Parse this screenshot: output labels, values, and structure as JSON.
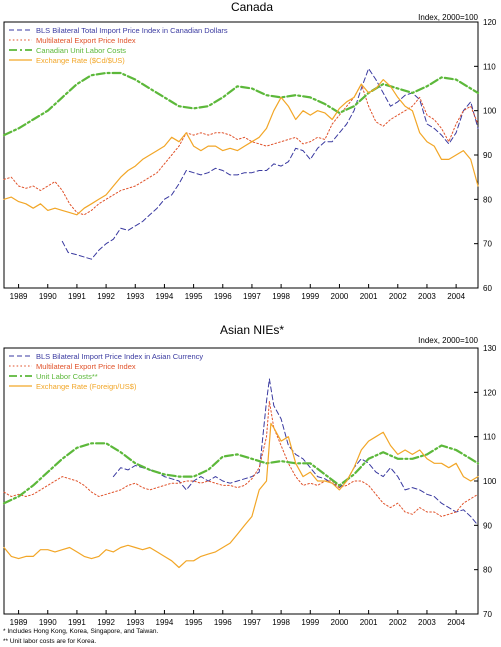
{
  "chart_data": [
    {
      "type": "line",
      "title": "Canada",
      "units_label": "Index, 2000=100",
      "ylim": [
        60,
        120
      ],
      "yticks": [
        60,
        70,
        80,
        90,
        100,
        110,
        120
      ],
      "xlim": [
        1988.5,
        2004.75
      ],
      "xtick_labels": [
        "1989",
        "1990",
        "1991",
        "1992",
        "1993",
        "1994",
        "1995",
        "1996",
        "1997",
        "1998",
        "1999",
        "2000",
        "2001",
        "2002",
        "2003",
        "2004"
      ],
      "legend_position": "top-left",
      "series": [
        {
          "name": "BLS Bilateral Total Import Price Index in Canadian Dollars",
          "color": "#3a3aa0",
          "dash": "dashed",
          "width": 1,
          "x": [
            1990.5,
            1990.7,
            1991,
            1991.25,
            1991.5,
            1991.75,
            1992,
            1992.25,
            1992.5,
            1992.75,
            1993,
            1993.25,
            1993.5,
            1993.75,
            1994,
            1994.25,
            1994.5,
            1994.75,
            1995,
            1995.25,
            1995.5,
            1995.75,
            1996,
            1996.25,
            1996.5,
            1996.75,
            1997,
            1997.25,
            1997.5,
            1997.75,
            1998,
            1998.25,
            1998.5,
            1998.75,
            1999,
            1999.25,
            1999.5,
            1999.75,
            2000,
            2000.25,
            2000.5,
            2000.75,
            2001,
            2001.25,
            2001.5,
            2001.75,
            2002,
            2002.25,
            2002.5,
            2002.75,
            2003,
            2003.25,
            2003.5,
            2003.75,
            2004,
            2004.25,
            2004.5,
            2004.75
          ],
          "y": [
            70.5,
            68,
            67.5,
            67,
            66.5,
            68.5,
            70,
            71,
            73.5,
            73,
            74,
            75,
            76.5,
            78,
            80,
            81,
            83.5,
            86.5,
            86,
            85.5,
            86,
            87,
            86.5,
            85.5,
            85.5,
            86,
            86,
            86.5,
            86.5,
            88,
            87.5,
            88.5,
            91.5,
            91,
            89,
            91.5,
            93,
            93,
            95,
            97,
            100,
            105,
            109.5,
            107,
            104,
            101,
            102,
            103.5,
            104,
            102.5,
            97,
            96,
            94.5,
            92.5,
            95,
            100,
            102,
            96
          ]
        },
        {
          "name": "Multilateral Export Price Index",
          "color": "#e0522a",
          "dash": "dotted",
          "width": 1,
          "x": [
            1988.5,
            1988.75,
            1989,
            1989.25,
            1989.5,
            1989.75,
            1990,
            1990.25,
            1990.5,
            1990.75,
            1991,
            1991.25,
            1991.5,
            1991.75,
            1992,
            1992.25,
            1992.5,
            1992.75,
            1993,
            1993.25,
            1993.5,
            1993.75,
            1994,
            1994.25,
            1994.5,
            1994.75,
            1995,
            1995.25,
            1995.5,
            1995.75,
            1996,
            1996.25,
            1996.5,
            1996.75,
            1997,
            1997.25,
            1997.5,
            1997.75,
            1998,
            1998.25,
            1998.5,
            1998.75,
            1999,
            1999.25,
            1999.5,
            1999.75,
            2000,
            2000.25,
            2000.5,
            2000.75,
            2001,
            2001.25,
            2001.5,
            2001.75,
            2002,
            2002.25,
            2002.5,
            2002.75,
            2003,
            2003.25,
            2003.5,
            2003.75,
            2004,
            2004.25,
            2004.5,
            2004.75
          ],
          "y": [
            84.5,
            85,
            83,
            82.5,
            83,
            82,
            83,
            84,
            82,
            79,
            77,
            76.5,
            77.5,
            79,
            80,
            81,
            82,
            82.5,
            83,
            84,
            85,
            86,
            88,
            90,
            92,
            95,
            94.5,
            95,
            94.5,
            95,
            95,
            94.5,
            93.5,
            94,
            93,
            92.5,
            92,
            92.5,
            93,
            93.5,
            94,
            92.5,
            93,
            94,
            93.5,
            97,
            99,
            101,
            103,
            106,
            101,
            97.5,
            96.5,
            98,
            99,
            100,
            101,
            103,
            99,
            98,
            96,
            93,
            97,
            100,
            101,
            97
          ]
        },
        {
          "name": "Canadian Unit Labor Costs",
          "color": "#5cb83a",
          "dash": "dashdot",
          "width": 2.2,
          "x": [
            1988.5,
            1989,
            1989.5,
            1990,
            1990.5,
            1991,
            1991.5,
            1992,
            1992.5,
            1993,
            1993.5,
            1994,
            1994.5,
            1995,
            1995.5,
            1996,
            1996.5,
            1997,
            1997.5,
            1998,
            1998.5,
            1999,
            1999.5,
            2000,
            2000.5,
            2001,
            2001.5,
            2002,
            2002.5,
            2003,
            2003.5,
            2004,
            2004.5,
            2004.75
          ],
          "y": [
            94.5,
            96,
            98,
            100,
            103,
            106,
            108,
            108.5,
            108.5,
            107,
            105,
            103,
            101,
            100.5,
            101,
            103,
            105.5,
            105,
            103.5,
            103,
            103.5,
            103,
            101.5,
            99.5,
            101,
            104,
            106,
            105,
            104,
            105.5,
            107.5,
            107,
            105,
            104
          ]
        },
        {
          "name": "Exchange Rate ($Cd/$US)",
          "color": "#f2a627",
          "dash": "solid",
          "width": 1.2,
          "x": [
            1988.5,
            1988.75,
            1989,
            1989.25,
            1989.5,
            1989.75,
            1990,
            1990.25,
            1990.5,
            1990.75,
            1991,
            1991.25,
            1991.5,
            1991.75,
            1992,
            1992.25,
            1992.5,
            1992.75,
            1993,
            1993.25,
            1993.5,
            1993.75,
            1994,
            1994.25,
            1994.5,
            1994.75,
            1995,
            1995.25,
            1995.5,
            1995.75,
            1996,
            1996.25,
            1996.5,
            1996.75,
            1997,
            1997.25,
            1997.5,
            1997.75,
            1998,
            1998.25,
            1998.5,
            1998.75,
            1999,
            1999.25,
            1999.5,
            1999.75,
            2000,
            2000.25,
            2000.5,
            2000.75,
            2001,
            2001.25,
            2001.5,
            2001.75,
            2002,
            2002.25,
            2002.5,
            2002.75,
            2003,
            2003.25,
            2003.5,
            2003.75,
            2004,
            2004.25,
            2004.5,
            2004.75
          ],
          "y": [
            80,
            80.5,
            79.5,
            79,
            78,
            79,
            77.5,
            78,
            77.5,
            77,
            76.5,
            78,
            79,
            80,
            81,
            83,
            85,
            86.5,
            87.5,
            89,
            90,
            91,
            92,
            94,
            93,
            95,
            92,
            91,
            92,
            92,
            91,
            91.5,
            91,
            92,
            93,
            94,
            96,
            100,
            103,
            101,
            98,
            100,
            99,
            100,
            99.5,
            98,
            100.5,
            102,
            103,
            106,
            104,
            105,
            107,
            105.5,
            103,
            101,
            100,
            95,
            93,
            92,
            89,
            89,
            90,
            91,
            89,
            83
          ]
        }
      ]
    },
    {
      "type": "line",
      "title": "Asian NIEs*",
      "units_label": "Index, 2000=100",
      "ylim": [
        70,
        130
      ],
      "yticks": [
        70,
        80,
        90,
        100,
        110,
        120,
        130
      ],
      "xlim": [
        1988.5,
        2004.75
      ],
      "xtick_labels": [
        "1989",
        "1990",
        "1991",
        "1992",
        "1993",
        "1994",
        "1995",
        "1996",
        "1997",
        "1998",
        "1999",
        "2000",
        "2001",
        "2002",
        "2003",
        "2004"
      ],
      "legend_position": "top-left",
      "series": [
        {
          "name": "BLS Bilateral Import Price Index in Asian Currency",
          "color": "#3a3aa0",
          "dash": "dashed",
          "width": 1,
          "x": [
            1992.25,
            1992.5,
            1992.75,
            1993,
            1993.25,
            1993.5,
            1993.75,
            1994,
            1994.25,
            1994.5,
            1994.75,
            1995,
            1995.25,
            1995.5,
            1995.75,
            1996,
            1996.25,
            1996.5,
            1996.75,
            1997,
            1997.25,
            1997.5,
            1997.6,
            1997.75,
            1998,
            1998.25,
            1998.5,
            1998.75,
            1999,
            1999.25,
            1999.5,
            1999.75,
            2000,
            2000.25,
            2000.5,
            2000.75,
            2001,
            2001.25,
            2001.5,
            2001.75,
            2002,
            2002.25,
            2002.5,
            2002.75,
            2003,
            2003.25,
            2003.5,
            2003.75,
            2004,
            2004.25,
            2004.5,
            2004.75
          ],
          "y": [
            101,
            103,
            102.5,
            103.5,
            103,
            102.5,
            102,
            101,
            100.5,
            100,
            98,
            100,
            101,
            100,
            101,
            100,
            99.5,
            100,
            100.5,
            101,
            102,
            118,
            123,
            117,
            114,
            108,
            106,
            105,
            103,
            101,
            100.5,
            99.5,
            98.5,
            100,
            103,
            105,
            104,
            102,
            101,
            103,
            101,
            98,
            98.5,
            98,
            97,
            96.5,
            95,
            94,
            93,
            93.5,
            92,
            90
          ]
        },
        {
          "name": "Multilateral Export Price Index",
          "color": "#e0522a",
          "dash": "dotted",
          "width": 1,
          "x": [
            1988.5,
            1988.75,
            1989,
            1989.25,
            1989.5,
            1989.75,
            1990,
            1990.25,
            1990.5,
            1990.75,
            1991,
            1991.25,
            1991.5,
            1991.75,
            1992,
            1992.25,
            1992.5,
            1992.75,
            1993,
            1993.25,
            1993.5,
            1993.75,
            1994,
            1994.25,
            1994.5,
            1994.75,
            1995,
            1995.25,
            1995.5,
            1995.75,
            1996,
            1996.25,
            1996.5,
            1996.75,
            1997,
            1997.25,
            1997.5,
            1997.6,
            1997.75,
            1998,
            1998.25,
            1998.5,
            1998.75,
            1999,
            1999.25,
            1999.5,
            1999.75,
            2000,
            2000.25,
            2000.5,
            2000.75,
            2001,
            2001.25,
            2001.5,
            2001.75,
            2002,
            2002.25,
            2002.5,
            2002.75,
            2003,
            2003.25,
            2003.5,
            2003.75,
            2004,
            2004.25,
            2004.5,
            2004.75
          ],
          "y": [
            97.5,
            96.5,
            97,
            96.5,
            97,
            98,
            99,
            100,
            101,
            100.5,
            100,
            99,
            97.5,
            96.5,
            97,
            97.5,
            98,
            99,
            99.5,
            98.5,
            98,
            98.5,
            99,
            99.5,
            99.5,
            100,
            100,
            99.5,
            100,
            99.5,
            99,
            99,
            98.5,
            99,
            100.5,
            103,
            110,
            118,
            112,
            108,
            104,
            101,
            99,
            99.5,
            99,
            100,
            100,
            98.5,
            99,
            100,
            100,
            99,
            97,
            95,
            94,
            95,
            93,
            92.5,
            94,
            93,
            93,
            92,
            92.5,
            93,
            95,
            96,
            97
          ]
        },
        {
          "name": "Unit Labor Costs**",
          "color": "#5cb83a",
          "dash": "dashdot",
          "width": 2.2,
          "x": [
            1988.5,
            1989,
            1989.5,
            1990,
            1990.5,
            1991,
            1991.5,
            1992,
            1992.5,
            1993,
            1993.5,
            1994,
            1994.5,
            1995,
            1995.5,
            1996,
            1996.5,
            1997,
            1997.5,
            1998,
            1998.5,
            1999,
            1999.5,
            2000,
            2000.5,
            2001,
            2001.5,
            2002,
            2002.5,
            2003,
            2003.5,
            2004,
            2004.5,
            2004.75
          ],
          "y": [
            95,
            96.5,
            99,
            102,
            105,
            107.5,
            108.5,
            108.5,
            106.5,
            104,
            102.5,
            101.5,
            101,
            101,
            102.5,
            105.5,
            106,
            105,
            104,
            104.5,
            104,
            104,
            101.5,
            99,
            101.5,
            105,
            106.5,
            105,
            105,
            106,
            108,
            107,
            105,
            104
          ]
        },
        {
          "name": "Exchange Rate (Foreign/US$)",
          "color": "#f2a627",
          "dash": "solid",
          "width": 1.2,
          "x": [
            1988.5,
            1988.75,
            1989,
            1989.25,
            1989.5,
            1989.75,
            1990,
            1990.25,
            1990.5,
            1990.75,
            1991,
            1991.25,
            1991.5,
            1991.75,
            1992,
            1992.25,
            1992.5,
            1992.75,
            1993,
            1993.25,
            1993.5,
            1993.75,
            1994,
            1994.25,
            1994.5,
            1994.75,
            1995,
            1995.25,
            1995.5,
            1995.75,
            1996,
            1996.25,
            1996.5,
            1996.75,
            1997,
            1997.25,
            1997.5,
            1997.65,
            1997.75,
            1998,
            1998.25,
            1998.5,
            1998.75,
            1999,
            1999.25,
            1999.5,
            1999.75,
            2000,
            2000.25,
            2000.5,
            2000.75,
            2001,
            2001.25,
            2001.5,
            2001.75,
            2002,
            2002.25,
            2002.5,
            2002.75,
            2003,
            2003.25,
            2003.5,
            2003.75,
            2004,
            2004.25,
            2004.5,
            2004.75
          ],
          "y": [
            85,
            83,
            82.5,
            83,
            83,
            84.5,
            84.5,
            84,
            84.5,
            85,
            84,
            83,
            82.5,
            83,
            84.5,
            84,
            85,
            85.5,
            85,
            84.5,
            85,
            84,
            83,
            82,
            80.5,
            82,
            82,
            83,
            83.5,
            84,
            85,
            86,
            88,
            90,
            92,
            98,
            100,
            113,
            112,
            109,
            110,
            104,
            101,
            102,
            100,
            100,
            99.5,
            98,
            100,
            103,
            107,
            109,
            110,
            111,
            108,
            106,
            107,
            106,
            107,
            105,
            104,
            104,
            103,
            104,
            101,
            100,
            101
          ]
        }
      ]
    }
  ],
  "footnotes": [
    "* Includes Hong Kong, Korea, Singapore, and Taiwan.",
    "** Unit labor costs are for Korea."
  ]
}
